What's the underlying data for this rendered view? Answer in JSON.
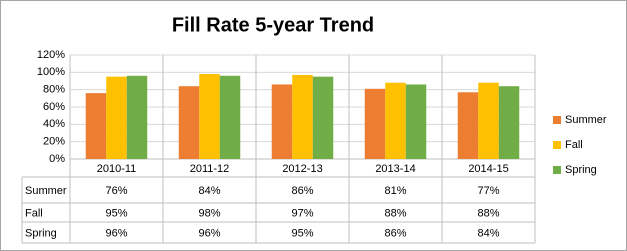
{
  "chart_data": {
    "type": "bar",
    "title": "Fill Rate 5-year Trend",
    "categories": [
      "2010-11",
      "2011-12",
      "2012-13",
      "2013-14",
      "2014-15"
    ],
    "series": [
      {
        "name": "Summer",
        "color": "#ed7d31",
        "values": [
          76,
          84,
          86,
          81,
          77
        ],
        "value_labels": [
          "76%",
          "84%",
          "86%",
          "81%",
          "77%"
        ]
      },
      {
        "name": "Fall",
        "color": "#ffc000",
        "values": [
          95,
          98,
          97,
          88,
          88
        ],
        "value_labels": [
          "95%",
          "98%",
          "97%",
          "88%",
          "88%"
        ]
      },
      {
        "name": "Spring",
        "color": "#70ad47",
        "values": [
          96,
          96,
          95,
          86,
          84
        ],
        "value_labels": [
          "96%",
          "96%",
          "95%",
          "86%",
          "84%"
        ]
      }
    ],
    "ylim": [
      0,
      120
    ],
    "yticks": [
      {
        "value": 0,
        "label": "0%"
      },
      {
        "value": 20,
        "label": "20%"
      },
      {
        "value": 40,
        "label": "40%"
      },
      {
        "value": 60,
        "label": "60%"
      },
      {
        "value": 80,
        "label": "80%"
      },
      {
        "value": 100,
        "label": "100%"
      },
      {
        "value": 120,
        "label": "120%"
      }
    ],
    "grid": true,
    "legend": "right"
  }
}
